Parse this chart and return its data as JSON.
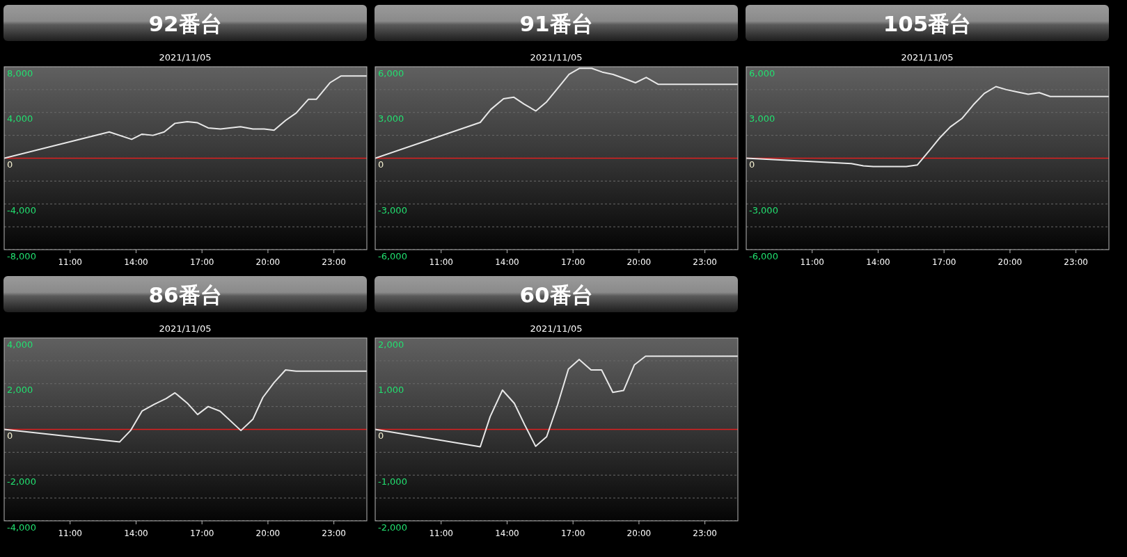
{
  "chart_data": [
    {
      "type": "area",
      "title": "92番台",
      "subtitle": "2021/11/05",
      "x": [
        8,
        12.78,
        13.8,
        14.27,
        14.77,
        15.28,
        15.77,
        16.33,
        16.8,
        17.28,
        17.84,
        18.75,
        19.32,
        19.83,
        20.28,
        20.8,
        21.28,
        21.84,
        22.2,
        22.82,
        23.33,
        24.5
      ],
      "series": [
        {
          "color": "#e8e8e8",
          "values": [
            0,
            2300,
            1650,
            2100,
            2000,
            2300,
            3050,
            3200,
            3100,
            2650,
            2550,
            2750,
            2550,
            2550,
            2450,
            3300,
            3950,
            5150,
            5150,
            6600,
            7200,
            7200
          ]
        }
      ],
      "xlim": [
        8,
        24.5
      ],
      "ylim": [
        -8000,
        8000
      ],
      "xticks": [
        {
          "value": 11,
          "label": "11:00"
        },
        {
          "value": 14,
          "label": "14:00"
        },
        {
          "value": 17,
          "label": "17:00"
        },
        {
          "value": 20,
          "label": "20:00"
        },
        {
          "value": 23,
          "label": "23:00"
        }
      ],
      "yticks": [
        {
          "value": 8000,
          "label": "8,000"
        },
        {
          "value": 6000,
          "label": null
        },
        {
          "value": 4000,
          "label": "4,000"
        },
        {
          "value": 2000,
          "label": null
        },
        {
          "value": 0,
          "label": "0"
        },
        {
          "value": -2000,
          "label": null
        },
        {
          "value": -4000,
          "label": "-4,000"
        },
        {
          "value": -6000,
          "label": null
        },
        {
          "value": -8000,
          "label": "-8,000"
        }
      ],
      "grid": "y",
      "ref_lines": [
        {
          "axis": "y",
          "value": 0,
          "label": null,
          "color": "#e02020"
        }
      ]
    },
    {
      "type": "area",
      "title": "91番台",
      "subtitle": "2021/11/05",
      "x": [
        8,
        12.78,
        13.26,
        13.84,
        14.31,
        14.77,
        15.31,
        15.8,
        16.28,
        16.82,
        17.3,
        17.85,
        18.33,
        18.82,
        19.3,
        19.84,
        20.33,
        20.87,
        24.5
      ],
      "series": [
        {
          "color": "#e8e8e8",
          "values": [
            0,
            2350,
            3200,
            3900,
            4000,
            3550,
            3100,
            3700,
            4550,
            5500,
            5900,
            5900,
            5650,
            5500,
            5250,
            4950,
            5300,
            4850,
            4850
          ]
        }
      ],
      "xlim": [
        8,
        24.5
      ],
      "ylim": [
        -6000,
        6000
      ],
      "xticks": [
        {
          "value": 11,
          "label": "11:00"
        },
        {
          "value": 14,
          "label": "14:00"
        },
        {
          "value": 17,
          "label": "17:00"
        },
        {
          "value": 20,
          "label": "20:00"
        },
        {
          "value": 23,
          "label": "23:00"
        }
      ],
      "yticks": [
        {
          "value": 6000,
          "label": "6,000"
        },
        {
          "value": 4500,
          "label": null
        },
        {
          "value": 3000,
          "label": "3,000"
        },
        {
          "value": 1500,
          "label": null
        },
        {
          "value": 0,
          "label": "0"
        },
        {
          "value": -1500,
          "label": null
        },
        {
          "value": -3000,
          "label": "-3,000"
        },
        {
          "value": -4500,
          "label": null
        },
        {
          "value": -6000,
          "label": "-6,000"
        }
      ],
      "grid": "y",
      "ref_lines": [
        {
          "axis": "y",
          "value": 0,
          "label": null,
          "color": "#e02020"
        }
      ]
    },
    {
      "type": "area",
      "title": "105番台",
      "subtitle": "2021/11/05",
      "x": [
        8,
        12.78,
        13.33,
        13.78,
        15.28,
        15.78,
        16.33,
        16.78,
        17.28,
        17.81,
        18.33,
        18.83,
        19.36,
        19.83,
        20.33,
        20.83,
        21.33,
        21.83,
        24.5
      ],
      "series": [
        {
          "color": "#e8e8e8",
          "values": [
            0,
            -350,
            -500,
            -550,
            -550,
            -450,
            500,
            1300,
            2050,
            2600,
            3500,
            4250,
            4700,
            4500,
            4350,
            4200,
            4300,
            4050,
            4050
          ]
        }
      ],
      "xlim": [
        8,
        24.5
      ],
      "ylim": [
        -6000,
        6000
      ],
      "xticks": [
        {
          "value": 11,
          "label": "11:00"
        },
        {
          "value": 14,
          "label": "14:00"
        },
        {
          "value": 17,
          "label": "17:00"
        },
        {
          "value": 20,
          "label": "20:00"
        },
        {
          "value": 23,
          "label": "23:00"
        }
      ],
      "yticks": [
        {
          "value": 6000,
          "label": "6,000"
        },
        {
          "value": 4500,
          "label": null
        },
        {
          "value": 3000,
          "label": "3,000"
        },
        {
          "value": 1500,
          "label": null
        },
        {
          "value": 0,
          "label": "0"
        },
        {
          "value": -1500,
          "label": null
        },
        {
          "value": -3000,
          "label": "-3,000"
        },
        {
          "value": -4500,
          "label": null
        },
        {
          "value": -6000,
          "label": "-6,000"
        }
      ],
      "grid": "y",
      "ref_lines": [
        {
          "axis": "y",
          "value": 0,
          "label": null,
          "color": "#e02020"
        }
      ]
    },
    {
      "type": "area",
      "title": "86番台",
      "subtitle": "2021/11/05",
      "x": [
        8,
        13.25,
        13.75,
        14.27,
        14.83,
        15.37,
        15.77,
        16.33,
        16.8,
        17.28,
        17.82,
        18.77,
        19.32,
        19.77,
        20.28,
        20.8,
        21.28,
        24.5
      ],
      "series": [
        {
          "color": "#e8e8e8",
          "values": [
            0,
            -550,
            -50,
            800,
            1100,
            1350,
            1600,
            1150,
            650,
            1000,
            800,
            -50,
            450,
            1400,
            2050,
            2600,
            2550,
            2550
          ]
        }
      ],
      "xlim": [
        8,
        24.5
      ],
      "ylim": [
        -4000,
        4000
      ],
      "xticks": [
        {
          "value": 11,
          "label": "11:00"
        },
        {
          "value": 14,
          "label": "14:00"
        },
        {
          "value": 17,
          "label": "17:00"
        },
        {
          "value": 20,
          "label": "20:00"
        },
        {
          "value": 23,
          "label": "23:00"
        }
      ],
      "yticks": [
        {
          "value": 4000,
          "label": "4,000"
        },
        {
          "value": 3000,
          "label": null
        },
        {
          "value": 2000,
          "label": "2,000"
        },
        {
          "value": 1000,
          "label": null
        },
        {
          "value": 0,
          "label": "0"
        },
        {
          "value": -1000,
          "label": null
        },
        {
          "value": -2000,
          "label": "-2,000"
        },
        {
          "value": -3000,
          "label": null
        },
        {
          "value": -4000,
          "label": "-4,000"
        }
      ],
      "grid": "y",
      "ref_lines": [
        {
          "axis": "y",
          "value": 0,
          "label": null,
          "color": "#e02020"
        }
      ]
    },
    {
      "type": "area",
      "title": "60番台",
      "subtitle": "2021/11/05",
      "x": [
        8,
        12.78,
        13.23,
        13.79,
        14.33,
        14.8,
        15.3,
        15.8,
        16.3,
        16.79,
        17.28,
        17.82,
        18.3,
        18.81,
        19.3,
        19.79,
        20.3,
        24.5
      ],
      "series": [
        {
          "color": "#e8e8e8",
          "values": [
            0,
            -380,
            280,
            860,
            570,
            100,
            -370,
            -160,
            540,
            1320,
            1530,
            1300,
            1300,
            810,
            850,
            1410,
            1600,
            1600
          ]
        }
      ],
      "xlim": [
        8,
        24.5
      ],
      "ylim": [
        -2000,
        2000
      ],
      "xticks": [
        {
          "value": 11,
          "label": "11:00"
        },
        {
          "value": 14,
          "label": "14:00"
        },
        {
          "value": 17,
          "label": "17:00"
        },
        {
          "value": 20,
          "label": "20:00"
        },
        {
          "value": 23,
          "label": "23:00"
        }
      ],
      "yticks": [
        {
          "value": 2000,
          "label": "2,000"
        },
        {
          "value": 1500,
          "label": null
        },
        {
          "value": 1000,
          "label": "1,000"
        },
        {
          "value": 500,
          "label": null
        },
        {
          "value": 0,
          "label": "0"
        },
        {
          "value": -500,
          "label": null
        },
        {
          "value": -1000,
          "label": "-1,000"
        },
        {
          "value": -1500,
          "label": null
        },
        {
          "value": -2000,
          "label": "-2,000"
        }
      ],
      "grid": "y",
      "ref_lines": [
        {
          "axis": "y",
          "value": 0,
          "label": null,
          "color": "#e02020"
        }
      ]
    }
  ]
}
